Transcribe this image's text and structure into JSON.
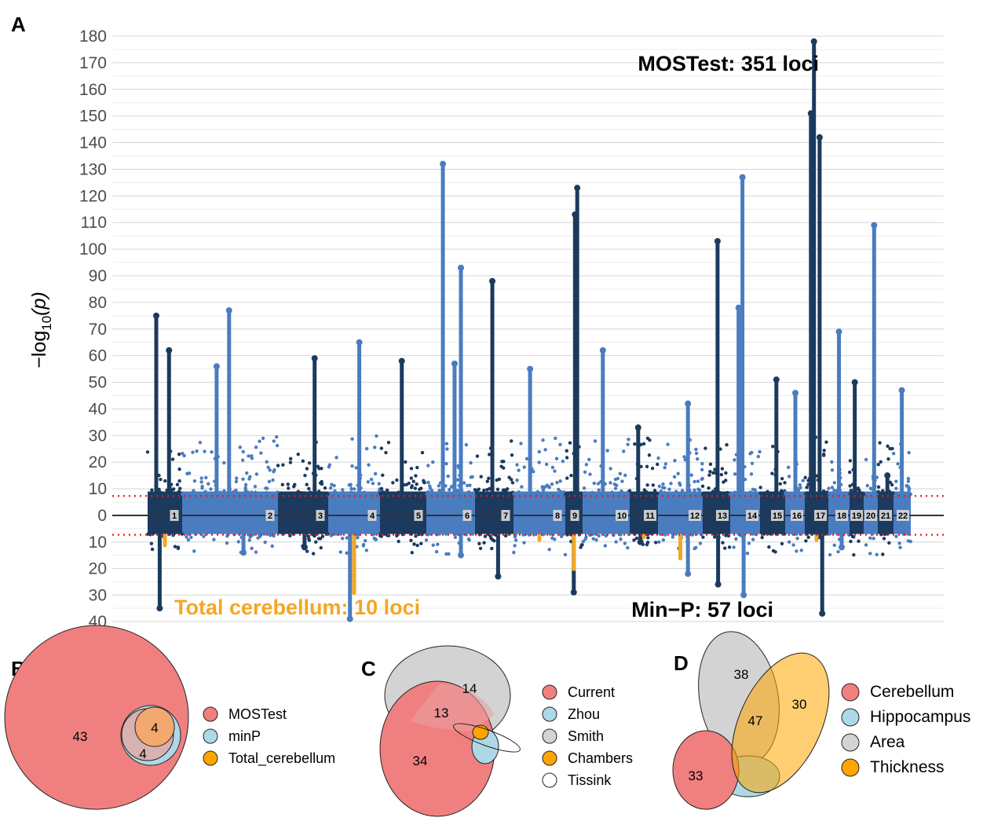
{
  "panels": {
    "A": "A",
    "B": "B",
    "C": "C",
    "D": "D"
  },
  "chart_data": [
    {
      "type": "scatter",
      "panel": "A",
      "ylabel_prefix": "−log",
      "ylabel_sub": "10",
      "ylabel_suffix": "(p)",
      "yticks_top": [
        180,
        170,
        160,
        150,
        140,
        130,
        120,
        110,
        100,
        90,
        80,
        70,
        60,
        50,
        40,
        30,
        20,
        10,
        0
      ],
      "yticks_bottom": [
        10,
        20,
        30,
        40
      ],
      "ylim_top": [
        0,
        180
      ],
      "ylim_bottom": [
        0,
        40
      ],
      "significance_threshold": 7.3,
      "chromosomes": [
        "1",
        "2",
        "3",
        "4",
        "5",
        "6",
        "7",
        "8",
        "9",
        "10",
        "11",
        "12",
        "13",
        "14",
        "15",
        "16",
        "17",
        "18",
        "19",
        "20",
        "21",
        "22"
      ],
      "annotations": {
        "mostest": "MOSTest: 351 loci",
        "minp": "Min−P: 57 loci",
        "total_cerebellum": "Total cerebellum: 10 loci"
      },
      "colors": {
        "dark": "#1b3a5e",
        "light": "#4a7cc0",
        "highlight": "#f5a623",
        "threshold": "#e41a1c"
      },
      "peaks_top": [
        {
          "chr": "1",
          "value": 75
        },
        {
          "chr": "1",
          "value": 62
        },
        {
          "chr": "2",
          "value": 77
        },
        {
          "chr": "2",
          "value": 56
        },
        {
          "chr": "3",
          "value": 59
        },
        {
          "chr": "4",
          "value": 65
        },
        {
          "chr": "5",
          "value": 58
        },
        {
          "chr": "6",
          "value": 132
        },
        {
          "chr": "6",
          "value": 93
        },
        {
          "chr": "6",
          "value": 57
        },
        {
          "chr": "7",
          "value": 88
        },
        {
          "chr": "8",
          "value": 55
        },
        {
          "chr": "9",
          "value": 123
        },
        {
          "chr": "9",
          "value": 113
        },
        {
          "chr": "10",
          "value": 62
        },
        {
          "chr": "11",
          "value": 33
        },
        {
          "chr": "12",
          "value": 42
        },
        {
          "chr": "13",
          "value": 103
        },
        {
          "chr": "14",
          "value": 127
        },
        {
          "chr": "14",
          "value": 78
        },
        {
          "chr": "15",
          "value": 51
        },
        {
          "chr": "16",
          "value": 46
        },
        {
          "chr": "17",
          "value": 178
        },
        {
          "chr": "17",
          "value": 151
        },
        {
          "chr": "17",
          "value": 142
        },
        {
          "chr": "18",
          "value": 69
        },
        {
          "chr": "19",
          "value": 50
        },
        {
          "chr": "20",
          "value": 109
        },
        {
          "chr": "21",
          "value": 15
        },
        {
          "chr": "22",
          "value": 47
        }
      ],
      "peaks_bottom": [
        {
          "chr": "1",
          "value": 35
        },
        {
          "chr": "2",
          "value": 14
        },
        {
          "chr": "3",
          "value": 12
        },
        {
          "chr": "4",
          "value": 39
        },
        {
          "chr": "6",
          "value": 15
        },
        {
          "chr": "7",
          "value": 23
        },
        {
          "chr": "9",
          "value": 29
        },
        {
          "chr": "11",
          "value": 10
        },
        {
          "chr": "12",
          "value": 22
        },
        {
          "chr": "13",
          "value": 26
        },
        {
          "chr": "14",
          "value": 30
        },
        {
          "chr": "17",
          "value": 37
        },
        {
          "chr": "18",
          "value": 12
        }
      ]
    },
    {
      "type": "venn",
      "panel": "B",
      "sets": [
        "MOSTest",
        "minP",
        "Total_cerebellum"
      ],
      "colors": [
        "#f08080",
        "#add8e6",
        "#ffa500"
      ],
      "regions": {
        "mostest_only": "43",
        "minp_and_mostest": "4",
        "all_three": "4"
      }
    },
    {
      "type": "venn",
      "panel": "C",
      "sets": [
        "Current",
        "Zhou",
        "Smith",
        "Chambers",
        "Tissink"
      ],
      "colors": [
        "#f08080",
        "#add8e6",
        "#d3d3d3",
        "#ffa500",
        "#ffffff"
      ],
      "regions": {
        "current_only": "34",
        "current_and_smith": "13",
        "smith_only": "14"
      }
    },
    {
      "type": "venn",
      "panel": "D",
      "sets": [
        "Cerebellum",
        "Hippocampus",
        "Area",
        "Thickness"
      ],
      "colors": [
        "#f08080",
        "#add8e6",
        "#d3d3d3",
        "#ffa500"
      ],
      "regions": {
        "area_only": "38",
        "area_and_thickness": "47",
        "thickness_only": "30",
        "cerebellum_only": "33"
      }
    }
  ]
}
